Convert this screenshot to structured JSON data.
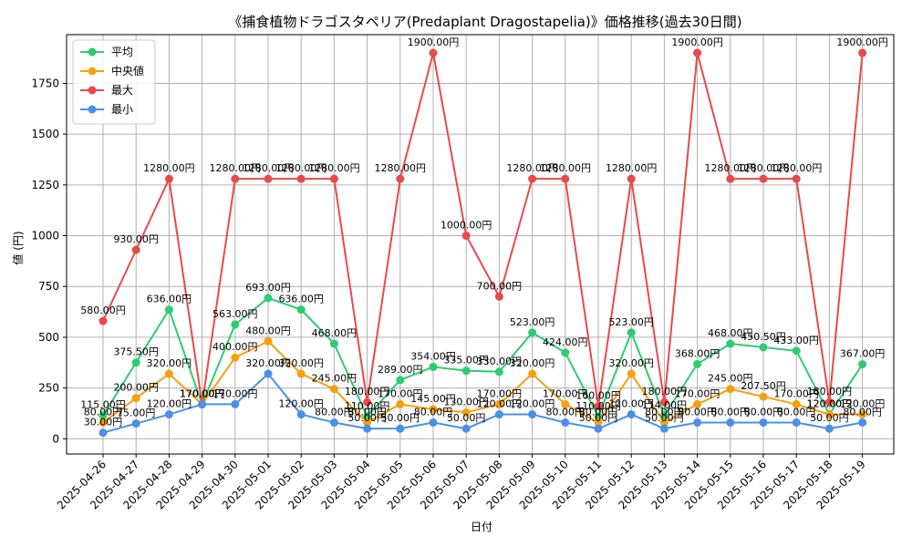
{
  "chart_data": {
    "type": "line",
    "title": "《捕食植物ドラゴスタペリア(Predaplant Dragostapelia)》価格推移(過去30日間)",
    "xlabel": "日付",
    "ylabel": "値 (円)",
    "ylim": [
      -75,
      1990
    ],
    "yticks": [
      0,
      250,
      500,
      750,
      1000,
      1250,
      1500,
      1750
    ],
    "grid": true,
    "legend_position": "top-left",
    "value_suffix": "円",
    "categories": [
      "2025-04-26",
      "2025-04-27",
      "2025-04-28",
      "2025-04-29",
      "2025-04-30",
      "2025-05-01",
      "2025-05-02",
      "2025-05-03",
      "2025-05-04",
      "2025-05-05",
      "2025-05-06",
      "2025-05-07",
      "2025-05-08",
      "2025-05-09",
      "2025-05-10",
      "2025-05-11",
      "2025-05-12",
      "2025-05-13",
      "2025-05-14",
      "2025-05-15",
      "2025-05-16",
      "2025-05-17",
      "2025-05-18",
      "2025-05-19"
    ],
    "series": [
      {
        "name": "平均",
        "color": "#2ecc71",
        "values": [
          115,
          375.5,
          636,
          170,
          563,
          693,
          636,
          468,
          110,
          289,
          354,
          335,
          330,
          523,
          424,
          110,
          523,
          114,
          368,
          468,
          450.5,
          433,
          120,
          367
        ]
      },
      {
        "name": "中央値",
        "color": "#f5a00f",
        "values": [
          80,
          200,
          320,
          170,
          400,
          480,
          320,
          245,
          80,
          170,
          145,
          130,
          170,
          320,
          170,
          80,
          320,
          80,
          170,
          245,
          207.5,
          170,
          120,
          120
        ]
      },
      {
        "name": "最大",
        "color": "#e84a4a",
        "values": [
          580,
          930,
          1280,
          170,
          1280,
          1280,
          1280,
          1280,
          180,
          1280,
          1900,
          1000,
          700,
          1280,
          1280,
          160,
          1280,
          180,
          1900,
          1280,
          1280,
          1280,
          180,
          1900
        ]
      },
      {
        "name": "最小",
        "color": "#4a90e8",
        "values": [
          30,
          75,
          120,
          170,
          170,
          320,
          120,
          80,
          50,
          50,
          80,
          50,
          120,
          120,
          80,
          50,
          120,
          50,
          80,
          80,
          80,
          80,
          50,
          80
        ]
      }
    ]
  }
}
